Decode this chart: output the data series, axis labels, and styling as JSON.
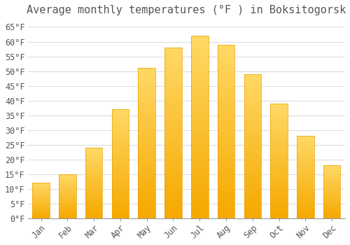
{
  "title": "Average monthly temperatures (°F ) in Boksitogorsk",
  "months": [
    "Jan",
    "Feb",
    "Mar",
    "Apr",
    "May",
    "Jun",
    "Jul",
    "Aug",
    "Sep",
    "Oct",
    "Nov",
    "Dec"
  ],
  "values": [
    12,
    15,
    24,
    37,
    51,
    58,
    62,
    59,
    49,
    39,
    28,
    18
  ],
  "bar_color_bottom": "#F5A800",
  "bar_color_top": "#FFD966",
  "background_color": "#FFFFFF",
  "grid_color": "#DDDDDD",
  "text_color": "#555555",
  "ylim": [
    0,
    67
  ],
  "yticks": [
    0,
    5,
    10,
    15,
    20,
    25,
    30,
    35,
    40,
    45,
    50,
    55,
    60,
    65
  ],
  "title_fontsize": 11,
  "tick_fontsize": 8.5,
  "ylabel_suffix": "°F"
}
